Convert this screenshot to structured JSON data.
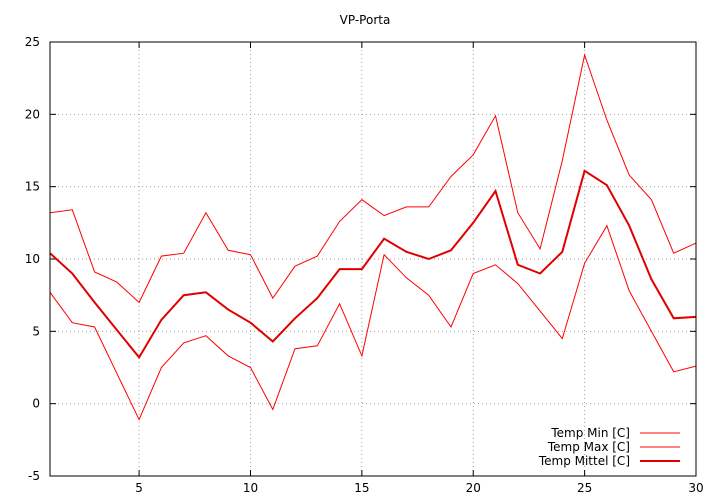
{
  "chart_data": {
    "type": "line",
    "title": "VP-Porta",
    "xlabel": "",
    "ylabel": "",
    "xlim": [
      1,
      30
    ],
    "ylim": [
      -5,
      25
    ],
    "xticks": [
      5,
      10,
      15,
      20,
      25,
      30
    ],
    "yticks": [
      -5,
      0,
      5,
      10,
      15,
      20,
      25
    ],
    "grid": true,
    "legend_position": "bottom-right",
    "x": [
      1,
      2,
      3,
      4,
      5,
      6,
      7,
      8,
      9,
      10,
      11,
      12,
      13,
      14,
      15,
      16,
      17,
      18,
      19,
      20,
      21,
      22,
      23,
      24,
      25,
      26,
      27,
      28,
      29,
      30
    ],
    "series": [
      {
        "name": "Temp Min [C]",
        "color": "#ff0000",
        "width": 1,
        "values": [
          7.7,
          5.6,
          5.3,
          2.1,
          -1.1,
          2.5,
          4.2,
          4.7,
          3.3,
          2.5,
          -0.4,
          3.8,
          4.0,
          6.9,
          3.3,
          10.3,
          8.7,
          7.5,
          5.3,
          9.0,
          9.6,
          8.3,
          6.4,
          4.5,
          9.7,
          12.3,
          7.8,
          5.0,
          2.2,
          2.6
        ]
      },
      {
        "name": "Temp Max [C]",
        "color": "#ff0000",
        "width": 1,
        "values": [
          13.2,
          13.4,
          9.1,
          8.4,
          7.0,
          10.2,
          10.4,
          13.2,
          10.6,
          10.3,
          7.3,
          9.5,
          10.2,
          12.6,
          14.1,
          13.0,
          13.6,
          13.6,
          15.7,
          17.2,
          19.9,
          13.2,
          10.7,
          16.8,
          24.1,
          19.6,
          15.8,
          14.1,
          10.4,
          11.1
        ]
      },
      {
        "name": "Temp Mittel [C]",
        "color": "#e00000",
        "width": 2,
        "values": [
          10.4,
          9.0,
          7.0,
          5.1,
          3.2,
          5.8,
          7.5,
          7.7,
          6.5,
          5.6,
          4.3,
          5.9,
          7.3,
          9.3,
          9.3,
          11.4,
          10.5,
          10.0,
          10.6,
          12.5,
          14.7,
          9.6,
          9.0,
          10.5,
          16.1,
          15.1,
          12.3,
          8.6,
          5.9,
          6.0
        ]
      }
    ]
  }
}
